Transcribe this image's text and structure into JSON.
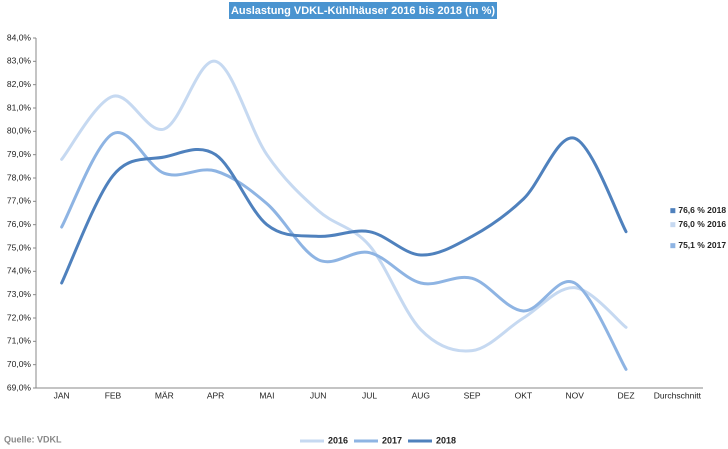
{
  "chart_data": {
    "type": "line",
    "title": "Auslastung VDKL-Kühlhäuser 2016 bis 2018 (in %)",
    "source": "Quelle: VDKL",
    "categories": [
      "JAN",
      "FEB",
      "MÄR",
      "APR",
      "MAI",
      "JUN",
      "JUL",
      "AUG",
      "SEP",
      "OKT",
      "NOV",
      "DEZ",
      "Durchschnitt"
    ],
    "series": [
      {
        "name": "2016",
        "color": "#c6d9f1",
        "values": [
          78.8,
          81.5,
          80.1,
          83.0,
          79.0,
          76.6,
          75.1,
          71.5,
          70.6,
          72.0,
          73.3,
          71.6,
          null
        ]
      },
      {
        "name": "2017",
        "color": "#8eb4e3",
        "values": [
          75.9,
          79.9,
          78.2,
          78.3,
          76.9,
          74.5,
          74.8,
          73.5,
          73.7,
          72.3,
          73.5,
          69.8,
          null
        ]
      },
      {
        "name": "2018",
        "color": "#4f81bd",
        "values": [
          73.5,
          78.1,
          78.9,
          79.0,
          76.0,
          75.5,
          75.7,
          74.7,
          75.5,
          77.1,
          79.7,
          75.7,
          null
        ]
      }
    ],
    "averages": [
      {
        "label": "76,6 % 2018",
        "value": 76.6,
        "color": "#4f81bd"
      },
      {
        "label": "76,0 % 2016",
        "value": 76.0,
        "color": "#c6d9f1"
      },
      {
        "label": "75,1 % 2017",
        "value": 75.1,
        "color": "#8eb4e3"
      }
    ],
    "ylim": [
      69,
      84
    ],
    "yticks": [
      {
        "value": 69,
        "label": "69,0%"
      },
      {
        "value": 70,
        "label": "70,0%"
      },
      {
        "value": 71,
        "label": "71,0%"
      },
      {
        "value": 72,
        "label": "72,0%"
      },
      {
        "value": 73,
        "label": "73,0%"
      },
      {
        "value": 74,
        "label": "74,0%"
      },
      {
        "value": 75,
        "label": "75,0%"
      },
      {
        "value": 76,
        "label": "76,0%"
      },
      {
        "value": 77,
        "label": "77,0%"
      },
      {
        "value": 78,
        "label": "78,0%"
      },
      {
        "value": 79,
        "label": "79,0%"
      },
      {
        "value": 80,
        "label": "80,0%"
      },
      {
        "value": 81,
        "label": "81,0%"
      },
      {
        "value": 82,
        "label": "82,0%"
      },
      {
        "value": 83,
        "label": "83,0%"
      },
      {
        "value": 84,
        "label": "84,0%"
      }
    ],
    "grid": false,
    "legend": "bottom"
  }
}
